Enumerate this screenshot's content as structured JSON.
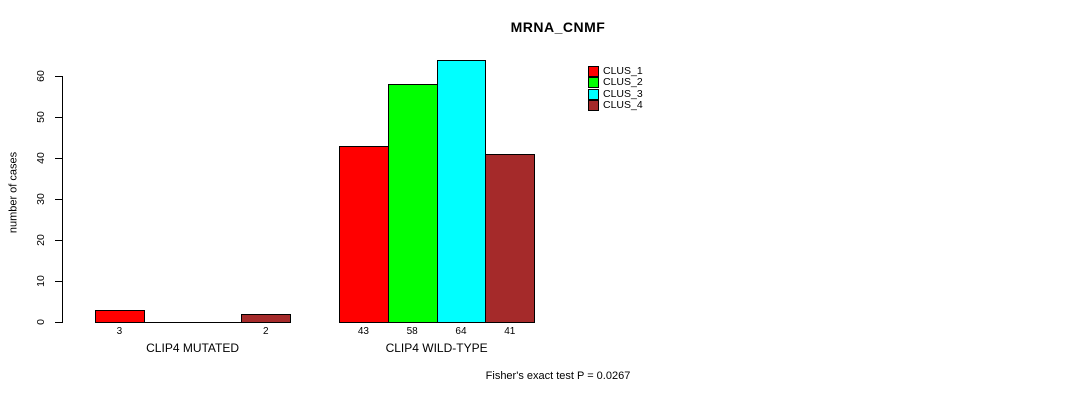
{
  "title": "MRNA_CNMF",
  "chart_data": {
    "type": "bar",
    "title": "MRNA_CNMF",
    "categories": [
      "CLIP4 MUTATED",
      "CLIP4 WILD-TYPE"
    ],
    "series": [
      {
        "name": "CLUS_1",
        "color": "#FF0000",
        "values": [
          3,
          43
        ]
      },
      {
        "name": "CLUS_2",
        "color": "#00FF00",
        "values": [
          0,
          58
        ]
      },
      {
        "name": "CLUS_3",
        "color": "#00FFFF",
        "values": [
          0,
          64
        ]
      },
      {
        "name": "CLUS_4",
        "color": "#A52A2A",
        "values": [
          2,
          41
        ]
      }
    ],
    "bar_value_labels": [
      [
        "3",
        "",
        "",
        "2"
      ],
      [
        "43",
        "58",
        "64",
        "41"
      ]
    ],
    "xlabel": "",
    "ylabel": "number of cases",
    "ylim": [
      0,
      60
    ],
    "yticks": [
      0,
      10,
      20,
      30,
      40,
      50,
      60
    ],
    "grid": false,
    "legend_position": "top-right",
    "axis_color": "#000000",
    "bar_border_color": "#000000"
  },
  "footer": {
    "fisher_text": "Fisher's exact test P = 0.0267"
  }
}
